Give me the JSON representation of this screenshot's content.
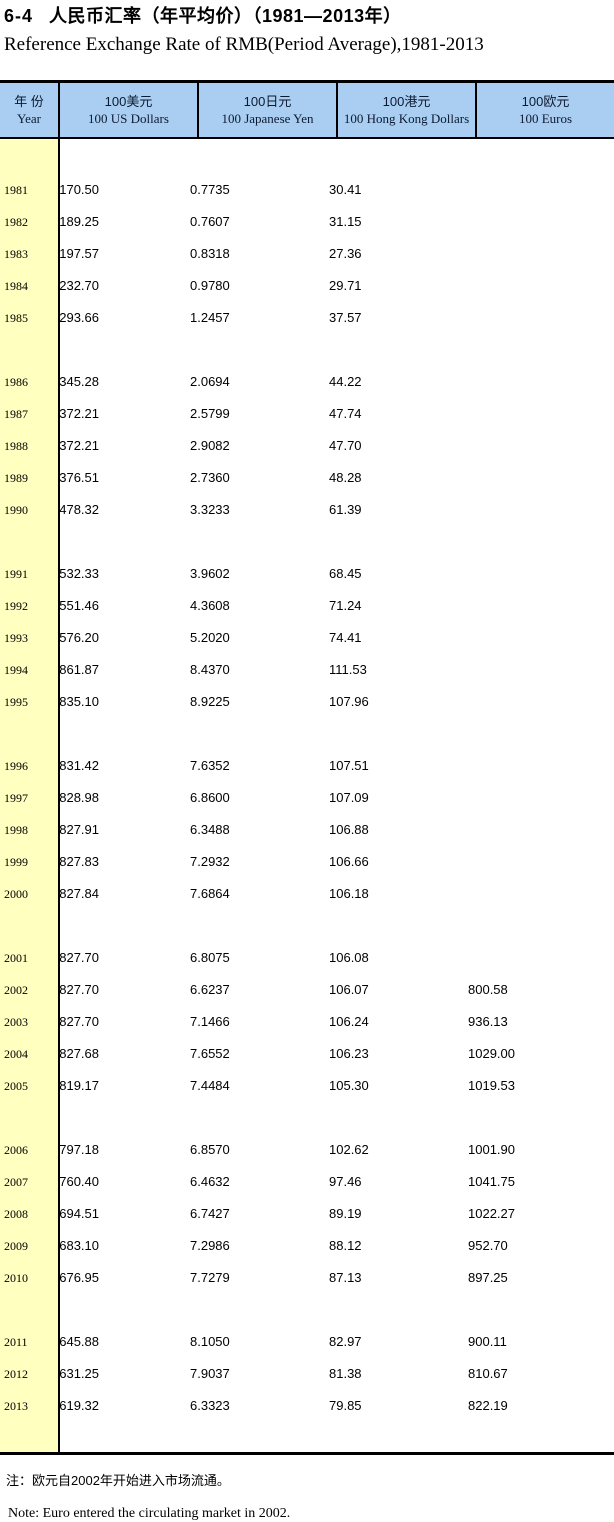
{
  "title": {
    "number": "6-4",
    "zh": "人民币汇率（年平均价）（1981—2013年）",
    "en": "Reference Exchange Rate of RMB(Period Average),1981-2013"
  },
  "colors": {
    "header_bg": "#a9cef1",
    "year_column_bg": "#ffffc0",
    "border": "#000000"
  },
  "table": {
    "columns": [
      {
        "zh": "年 份",
        "en": "Year"
      },
      {
        "zh": "100美元",
        "en": "100 US Dollars"
      },
      {
        "zh": "100日元",
        "en": "100 Japanese Yen"
      },
      {
        "zh": "100港元",
        "en": "100 Hong Kong Dollars"
      },
      {
        "zh": "100欧元",
        "en": "100 Euros"
      }
    ],
    "rows": [
      {
        "year": "1981",
        "usd": "170.50",
        "jpy": "0.7735",
        "hkd": "30.41",
        "eur": ""
      },
      {
        "year": "1982",
        "usd": "189.25",
        "jpy": "0.7607",
        "hkd": "31.15",
        "eur": ""
      },
      {
        "year": "1983",
        "usd": "197.57",
        "jpy": "0.8318",
        "hkd": "27.36",
        "eur": ""
      },
      {
        "year": "1984",
        "usd": "232.70",
        "jpy": "0.9780",
        "hkd": "29.71",
        "eur": ""
      },
      {
        "year": "1985",
        "usd": "293.66",
        "jpy": "1.2457",
        "hkd": "37.57",
        "eur": ""
      },
      {
        "year": "1986",
        "usd": "345.28",
        "jpy": "2.0694",
        "hkd": "44.22",
        "eur": ""
      },
      {
        "year": "1987",
        "usd": "372.21",
        "jpy": "2.5799",
        "hkd": "47.74",
        "eur": ""
      },
      {
        "year": "1988",
        "usd": "372.21",
        "jpy": "2.9082",
        "hkd": "47.70",
        "eur": ""
      },
      {
        "year": "1989",
        "usd": "376.51",
        "jpy": "2.7360",
        "hkd": "48.28",
        "eur": ""
      },
      {
        "year": "1990",
        "usd": "478.32",
        "jpy": "3.3233",
        "hkd": "61.39",
        "eur": ""
      },
      {
        "year": "1991",
        "usd": "532.33",
        "jpy": "3.9602",
        "hkd": "68.45",
        "eur": ""
      },
      {
        "year": "1992",
        "usd": "551.46",
        "jpy": "4.3608",
        "hkd": "71.24",
        "eur": ""
      },
      {
        "year": "1993",
        "usd": "576.20",
        "jpy": "5.2020",
        "hkd": "74.41",
        "eur": ""
      },
      {
        "year": "1994",
        "usd": "861.87",
        "jpy": "8.4370",
        "hkd": "111.53",
        "eur": ""
      },
      {
        "year": "1995",
        "usd": "835.10",
        "jpy": "8.9225",
        "hkd": "107.96",
        "eur": ""
      },
      {
        "year": "1996",
        "usd": "831.42",
        "jpy": "7.6352",
        "hkd": "107.51",
        "eur": ""
      },
      {
        "year": "1997",
        "usd": "828.98",
        "jpy": "6.8600",
        "hkd": "107.09",
        "eur": ""
      },
      {
        "year": "1998",
        "usd": "827.91",
        "jpy": "6.3488",
        "hkd": "106.88",
        "eur": ""
      },
      {
        "year": "1999",
        "usd": "827.83",
        "jpy": "7.2932",
        "hkd": "106.66",
        "eur": ""
      },
      {
        "year": "2000",
        "usd": "827.84",
        "jpy": "7.6864",
        "hkd": "106.18",
        "eur": ""
      },
      {
        "year": "2001",
        "usd": "827.70",
        "jpy": "6.8075",
        "hkd": "106.08",
        "eur": ""
      },
      {
        "year": "2002",
        "usd": "827.70",
        "jpy": "6.6237",
        "hkd": "106.07",
        "eur": "800.58"
      },
      {
        "year": "2003",
        "usd": "827.70",
        "jpy": "7.1466",
        "hkd": "106.24",
        "eur": "936.13"
      },
      {
        "year": "2004",
        "usd": "827.68",
        "jpy": "7.6552",
        "hkd": "106.23",
        "eur": "1029.00"
      },
      {
        "year": "2005",
        "usd": "819.17",
        "jpy": "7.4484",
        "hkd": "105.30",
        "eur": "1019.53"
      },
      {
        "year": "2006",
        "usd": "797.18",
        "jpy": "6.8570",
        "hkd": "102.62",
        "eur": "1001.90"
      },
      {
        "year": "2007",
        "usd": "760.40",
        "jpy": "6.4632",
        "hkd": "97.46",
        "eur": "1041.75"
      },
      {
        "year": "2008",
        "usd": "694.51",
        "jpy": "6.7427",
        "hkd": "89.19",
        "eur": "1022.27"
      },
      {
        "year": "2009",
        "usd": "683.10",
        "jpy": "7.2986",
        "hkd": "88.12",
        "eur": "952.70"
      },
      {
        "year": "2010",
        "usd": "676.95",
        "jpy": "7.7279",
        "hkd": "87.13",
        "eur": "897.25"
      },
      {
        "year": "2011",
        "usd": "645.88",
        "jpy": "8.1050",
        "hkd": "82.97",
        "eur": "900.11"
      },
      {
        "year": "2012",
        "usd": "631.25",
        "jpy": "7.9037",
        "hkd": "81.38",
        "eur": "810.67"
      },
      {
        "year": "2013",
        "usd": "619.32",
        "jpy": "6.3323",
        "hkd": "79.85",
        "eur": "822.19"
      }
    ],
    "gap_after_years": [
      "1985",
      "1990",
      "1995",
      "2000",
      "2005",
      "2010"
    ]
  },
  "notes": {
    "zh": "注：欧元自2002年开始进入市场流通。",
    "en": "Note: Euro entered the circulating market in 2002."
  }
}
